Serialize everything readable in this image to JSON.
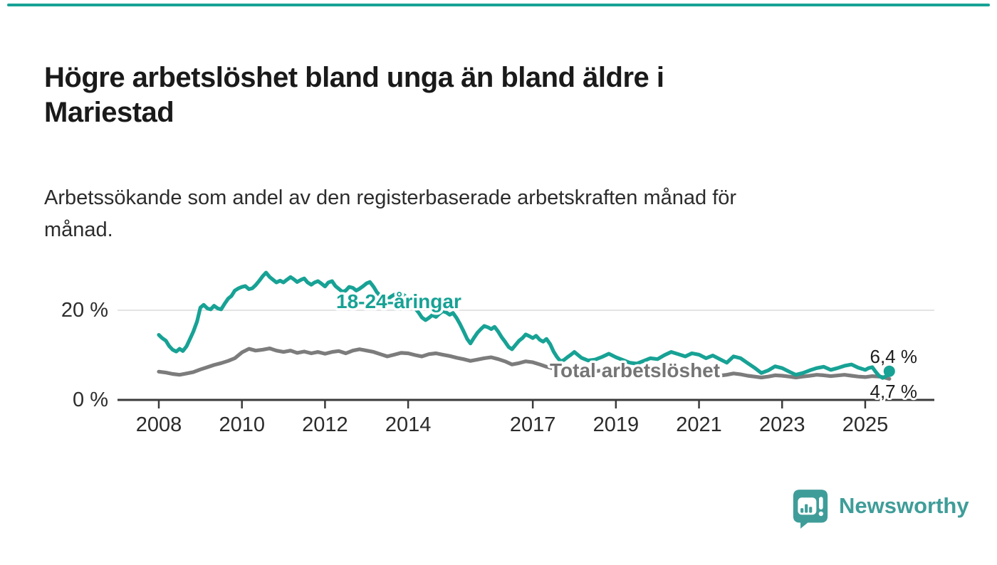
{
  "header": {
    "title": "Högre arbetslöshet bland unga än bland äldre i\nMariestad",
    "subtitle": "Arbetssökande som andel av den registerbaserade arbetskraften månad för\nmånad."
  },
  "colors": {
    "accent_teal": "#17a295",
    "line_gray": "#7c7c7c",
    "label_gray": "#757575",
    "axis_dark": "#3b3b3b",
    "gridline": "#e4e4e4",
    "end_label_dark": "#1d1d1d",
    "logo_teal": "#3f9d99"
  },
  "chart_data": {
    "type": "line",
    "title": "Högre arbetslöshet bland unga än bland äldre i Mariestad",
    "subtitle": "Arbetssökande som andel av den registerbaserade arbetskraften månad för månad.",
    "unit": "%",
    "grid": "horizontal-20-only",
    "legend_position": "inline-labels-on-lines",
    "y_axis": {
      "range": [
        0,
        31
      ],
      "ticks": [
        {
          "value": 0,
          "label": "0 %"
        },
        {
          "value": 20,
          "label": "20 %"
        }
      ],
      "gridline_at": 20
    },
    "x_axis": {
      "range": [
        2008,
        2026
      ],
      "ticks": [
        2008,
        2010,
        2012,
        2014,
        2017,
        2019,
        2021,
        2023,
        2025
      ]
    },
    "series": [
      {
        "name": "Total arbetslöshet",
        "color": "#7c7c7c",
        "end_value": 4.7,
        "end_label": "4,7 %",
        "end_dot": false,
        "points": [
          [
            2008.0,
            6.3
          ],
          [
            2008.17,
            6.1
          ],
          [
            2008.33,
            5.8
          ],
          [
            2008.5,
            5.6
          ],
          [
            2008.67,
            5.9
          ],
          [
            2008.83,
            6.2
          ],
          [
            2009.0,
            6.8
          ],
          [
            2009.17,
            7.3
          ],
          [
            2009.33,
            7.8
          ],
          [
            2009.5,
            8.2
          ],
          [
            2009.67,
            8.7
          ],
          [
            2009.83,
            9.3
          ],
          [
            2010.0,
            10.6
          ],
          [
            2010.17,
            11.4
          ],
          [
            2010.33,
            11.0
          ],
          [
            2010.5,
            11.2
          ],
          [
            2010.67,
            11.5
          ],
          [
            2010.83,
            11.0
          ],
          [
            2011.0,
            10.7
          ],
          [
            2011.17,
            11.0
          ],
          [
            2011.33,
            10.5
          ],
          [
            2011.5,
            10.8
          ],
          [
            2011.67,
            10.4
          ],
          [
            2011.83,
            10.7
          ],
          [
            2012.0,
            10.3
          ],
          [
            2012.17,
            10.7
          ],
          [
            2012.33,
            10.9
          ],
          [
            2012.5,
            10.4
          ],
          [
            2012.67,
            11.0
          ],
          [
            2012.83,
            11.3
          ],
          [
            2013.0,
            11.0
          ],
          [
            2013.17,
            10.7
          ],
          [
            2013.33,
            10.2
          ],
          [
            2013.5,
            9.7
          ],
          [
            2013.67,
            10.1
          ],
          [
            2013.83,
            10.5
          ],
          [
            2014.0,
            10.4
          ],
          [
            2014.17,
            10.0
          ],
          [
            2014.33,
            9.7
          ],
          [
            2014.5,
            10.2
          ],
          [
            2014.67,
            10.4
          ],
          [
            2014.83,
            10.1
          ],
          [
            2015.0,
            9.8
          ],
          [
            2015.17,
            9.4
          ],
          [
            2015.33,
            9.1
          ],
          [
            2015.5,
            8.7
          ],
          [
            2015.67,
            9.0
          ],
          [
            2015.83,
            9.3
          ],
          [
            2016.0,
            9.5
          ],
          [
            2016.17,
            9.1
          ],
          [
            2016.33,
            8.6
          ],
          [
            2016.5,
            7.9
          ],
          [
            2016.67,
            8.2
          ],
          [
            2016.83,
            8.6
          ],
          [
            2017.0,
            8.4
          ],
          [
            2017.17,
            7.9
          ],
          [
            2017.33,
            7.4
          ],
          [
            2017.5,
            7.0
          ],
          [
            2017.67,
            7.2
          ],
          [
            2017.83,
            7.4
          ],
          [
            2018.0,
            7.1
          ],
          [
            2018.17,
            6.9
          ],
          [
            2018.33,
            6.6
          ],
          [
            2018.5,
            6.4
          ],
          [
            2018.67,
            6.6
          ],
          [
            2018.83,
            6.9
          ],
          [
            2019.0,
            6.6
          ],
          [
            2019.17,
            6.3
          ],
          [
            2019.33,
            6.1
          ],
          [
            2019.5,
            5.9
          ],
          [
            2019.67,
            6.1
          ],
          [
            2019.83,
            6.3
          ],
          [
            2020.0,
            6.1
          ],
          [
            2020.17,
            6.4
          ],
          [
            2020.33,
            6.3
          ],
          [
            2020.5,
            6.0
          ],
          [
            2020.67,
            5.9
          ],
          [
            2020.83,
            6.1
          ],
          [
            2021.0,
            5.9
          ],
          [
            2021.17,
            5.7
          ],
          [
            2021.33,
            5.6
          ],
          [
            2021.5,
            5.4
          ],
          [
            2021.67,
            5.6
          ],
          [
            2021.83,
            5.9
          ],
          [
            2022.0,
            5.7
          ],
          [
            2022.17,
            5.4
          ],
          [
            2022.33,
            5.2
          ],
          [
            2022.5,
            5.0
          ],
          [
            2022.67,
            5.2
          ],
          [
            2022.83,
            5.5
          ],
          [
            2023.0,
            5.4
          ],
          [
            2023.17,
            5.2
          ],
          [
            2023.33,
            5.0
          ],
          [
            2023.5,
            5.2
          ],
          [
            2023.67,
            5.4
          ],
          [
            2023.83,
            5.6
          ],
          [
            2024.0,
            5.5
          ],
          [
            2024.17,
            5.3
          ],
          [
            2024.5,
            5.6
          ],
          [
            2024.67,
            5.4
          ],
          [
            2024.83,
            5.2
          ],
          [
            2025.0,
            5.1
          ],
          [
            2025.17,
            5.3
          ],
          [
            2025.33,
            5.2
          ],
          [
            2025.42,
            5.1
          ],
          [
            2025.5,
            4.9
          ],
          [
            2025.58,
            4.7
          ]
        ]
      },
      {
        "name": "18-24-åringar",
        "color": "#17a295",
        "end_value": 6.4,
        "end_label": "6,4 %",
        "end_dot": true,
        "points": [
          [
            2008.0,
            14.5
          ],
          [
            2008.08,
            13.8
          ],
          [
            2008.17,
            13.2
          ],
          [
            2008.25,
            12.0
          ],
          [
            2008.33,
            11.2
          ],
          [
            2008.42,
            10.8
          ],
          [
            2008.5,
            11.4
          ],
          [
            2008.58,
            10.9
          ],
          [
            2008.67,
            12.0
          ],
          [
            2008.75,
            13.6
          ],
          [
            2008.83,
            15.2
          ],
          [
            2008.92,
            17.5
          ],
          [
            2009.0,
            20.6
          ],
          [
            2009.08,
            21.2
          ],
          [
            2009.17,
            20.4
          ],
          [
            2009.25,
            20.2
          ],
          [
            2009.33,
            21.0
          ],
          [
            2009.42,
            20.4
          ],
          [
            2009.5,
            20.2
          ],
          [
            2009.58,
            21.4
          ],
          [
            2009.67,
            22.6
          ],
          [
            2009.75,
            23.2
          ],
          [
            2009.83,
            24.4
          ],
          [
            2009.92,
            24.9
          ],
          [
            2010.0,
            25.2
          ],
          [
            2010.08,
            25.4
          ],
          [
            2010.17,
            24.7
          ],
          [
            2010.25,
            24.9
          ],
          [
            2010.33,
            25.6
          ],
          [
            2010.42,
            26.6
          ],
          [
            2010.5,
            27.6
          ],
          [
            2010.58,
            28.4
          ],
          [
            2010.67,
            27.4
          ],
          [
            2010.75,
            26.8
          ],
          [
            2010.83,
            26.2
          ],
          [
            2010.92,
            26.6
          ],
          [
            2011.0,
            26.2
          ],
          [
            2011.08,
            26.8
          ],
          [
            2011.17,
            27.4
          ],
          [
            2011.25,
            26.9
          ],
          [
            2011.33,
            26.3
          ],
          [
            2011.42,
            26.8
          ],
          [
            2011.5,
            27.1
          ],
          [
            2011.58,
            26.2
          ],
          [
            2011.67,
            25.7
          ],
          [
            2011.75,
            26.2
          ],
          [
            2011.83,
            26.5
          ],
          [
            2011.92,
            25.9
          ],
          [
            2012.0,
            25.3
          ],
          [
            2012.08,
            26.2
          ],
          [
            2012.17,
            26.5
          ],
          [
            2012.25,
            25.4
          ],
          [
            2012.33,
            24.8
          ],
          [
            2012.42,
            24.1
          ],
          [
            2012.5,
            24.4
          ],
          [
            2012.58,
            25.2
          ],
          [
            2012.67,
            25.0
          ],
          [
            2012.75,
            24.4
          ],
          [
            2012.83,
            24.8
          ],
          [
            2012.92,
            25.4
          ],
          [
            2013.0,
            26.0
          ],
          [
            2013.08,
            26.3
          ],
          [
            2013.17,
            25.2
          ],
          [
            2013.25,
            24.0
          ],
          [
            2013.33,
            23.2
          ],
          [
            2013.42,
            22.8
          ],
          [
            2013.5,
            22.4
          ],
          [
            2013.58,
            23.0
          ],
          [
            2013.67,
            23.5
          ],
          [
            2013.75,
            23.2
          ],
          [
            2013.83,
            23.8
          ],
          [
            2013.92,
            23.2
          ],
          [
            2014.0,
            22.2
          ],
          [
            2014.08,
            21.4
          ],
          [
            2014.17,
            20.4
          ],
          [
            2014.25,
            19.5
          ],
          [
            2014.33,
            18.4
          ],
          [
            2014.42,
            17.8
          ],
          [
            2014.5,
            18.3
          ],
          [
            2014.58,
            18.9
          ],
          [
            2014.67,
            18.5
          ],
          [
            2014.75,
            19.2
          ],
          [
            2014.83,
            19.8
          ],
          [
            2014.92,
            19.5
          ],
          [
            2015.0,
            19.0
          ],
          [
            2015.08,
            19.4
          ],
          [
            2015.17,
            18.2
          ],
          [
            2015.25,
            16.9
          ],
          [
            2015.33,
            15.4
          ],
          [
            2015.42,
            13.6
          ],
          [
            2015.5,
            12.6
          ],
          [
            2015.58,
            13.8
          ],
          [
            2015.67,
            15.0
          ],
          [
            2015.75,
            15.8
          ],
          [
            2015.83,
            16.5
          ],
          [
            2015.92,
            16.2
          ],
          [
            2016.0,
            15.8
          ],
          [
            2016.08,
            16.3
          ],
          [
            2016.17,
            15.2
          ],
          [
            2016.25,
            14.0
          ],
          [
            2016.33,
            13.0
          ],
          [
            2016.42,
            11.8
          ],
          [
            2016.5,
            11.3
          ],
          [
            2016.58,
            12.2
          ],
          [
            2016.67,
            13.2
          ],
          [
            2016.75,
            13.8
          ],
          [
            2016.83,
            14.6
          ],
          [
            2016.92,
            14.2
          ],
          [
            2017.0,
            13.8
          ],
          [
            2017.08,
            14.3
          ],
          [
            2017.17,
            13.4
          ],
          [
            2017.25,
            13.0
          ],
          [
            2017.33,
            13.6
          ],
          [
            2017.42,
            12.4
          ],
          [
            2017.5,
            10.8
          ],
          [
            2017.58,
            9.6
          ],
          [
            2017.67,
            8.6
          ],
          [
            2017.75,
            8.9
          ],
          [
            2017.83,
            9.5
          ],
          [
            2017.92,
            10.1
          ],
          [
            2018.0,
            10.7
          ],
          [
            2018.17,
            9.4
          ],
          [
            2018.33,
            8.8
          ],
          [
            2018.5,
            9.0
          ],
          [
            2018.67,
            9.6
          ],
          [
            2018.83,
            10.3
          ],
          [
            2019.0,
            9.5
          ],
          [
            2019.17,
            8.9
          ],
          [
            2019.33,
            8.3
          ],
          [
            2019.5,
            8.1
          ],
          [
            2019.67,
            8.7
          ],
          [
            2019.83,
            9.3
          ],
          [
            2020.0,
            9.1
          ],
          [
            2020.17,
            10.0
          ],
          [
            2020.33,
            10.7
          ],
          [
            2020.5,
            10.2
          ],
          [
            2020.67,
            9.7
          ],
          [
            2020.83,
            10.4
          ],
          [
            2021.0,
            10.1
          ],
          [
            2021.17,
            9.3
          ],
          [
            2021.33,
            9.9
          ],
          [
            2021.5,
            9.1
          ],
          [
            2021.67,
            8.3
          ],
          [
            2021.83,
            9.7
          ],
          [
            2022.0,
            9.3
          ],
          [
            2022.17,
            8.2
          ],
          [
            2022.33,
            7.2
          ],
          [
            2022.5,
            6.0
          ],
          [
            2022.67,
            6.6
          ],
          [
            2022.83,
            7.5
          ],
          [
            2023.0,
            7.1
          ],
          [
            2023.17,
            6.3
          ],
          [
            2023.33,
            5.6
          ],
          [
            2023.5,
            6.0
          ],
          [
            2023.67,
            6.6
          ],
          [
            2023.83,
            7.1
          ],
          [
            2024.0,
            7.4
          ],
          [
            2024.17,
            6.7
          ],
          [
            2024.33,
            7.1
          ],
          [
            2024.5,
            7.6
          ],
          [
            2024.67,
            7.9
          ],
          [
            2024.83,
            7.2
          ],
          [
            2025.0,
            6.7
          ],
          [
            2025.08,
            7.1
          ],
          [
            2025.17,
            7.3
          ],
          [
            2025.25,
            6.3
          ],
          [
            2025.33,
            5.4
          ],
          [
            2025.42,
            4.9
          ],
          [
            2025.5,
            5.3
          ],
          [
            2025.58,
            6.4
          ]
        ]
      }
    ]
  },
  "footer": {
    "brand": "Newsworthy"
  }
}
